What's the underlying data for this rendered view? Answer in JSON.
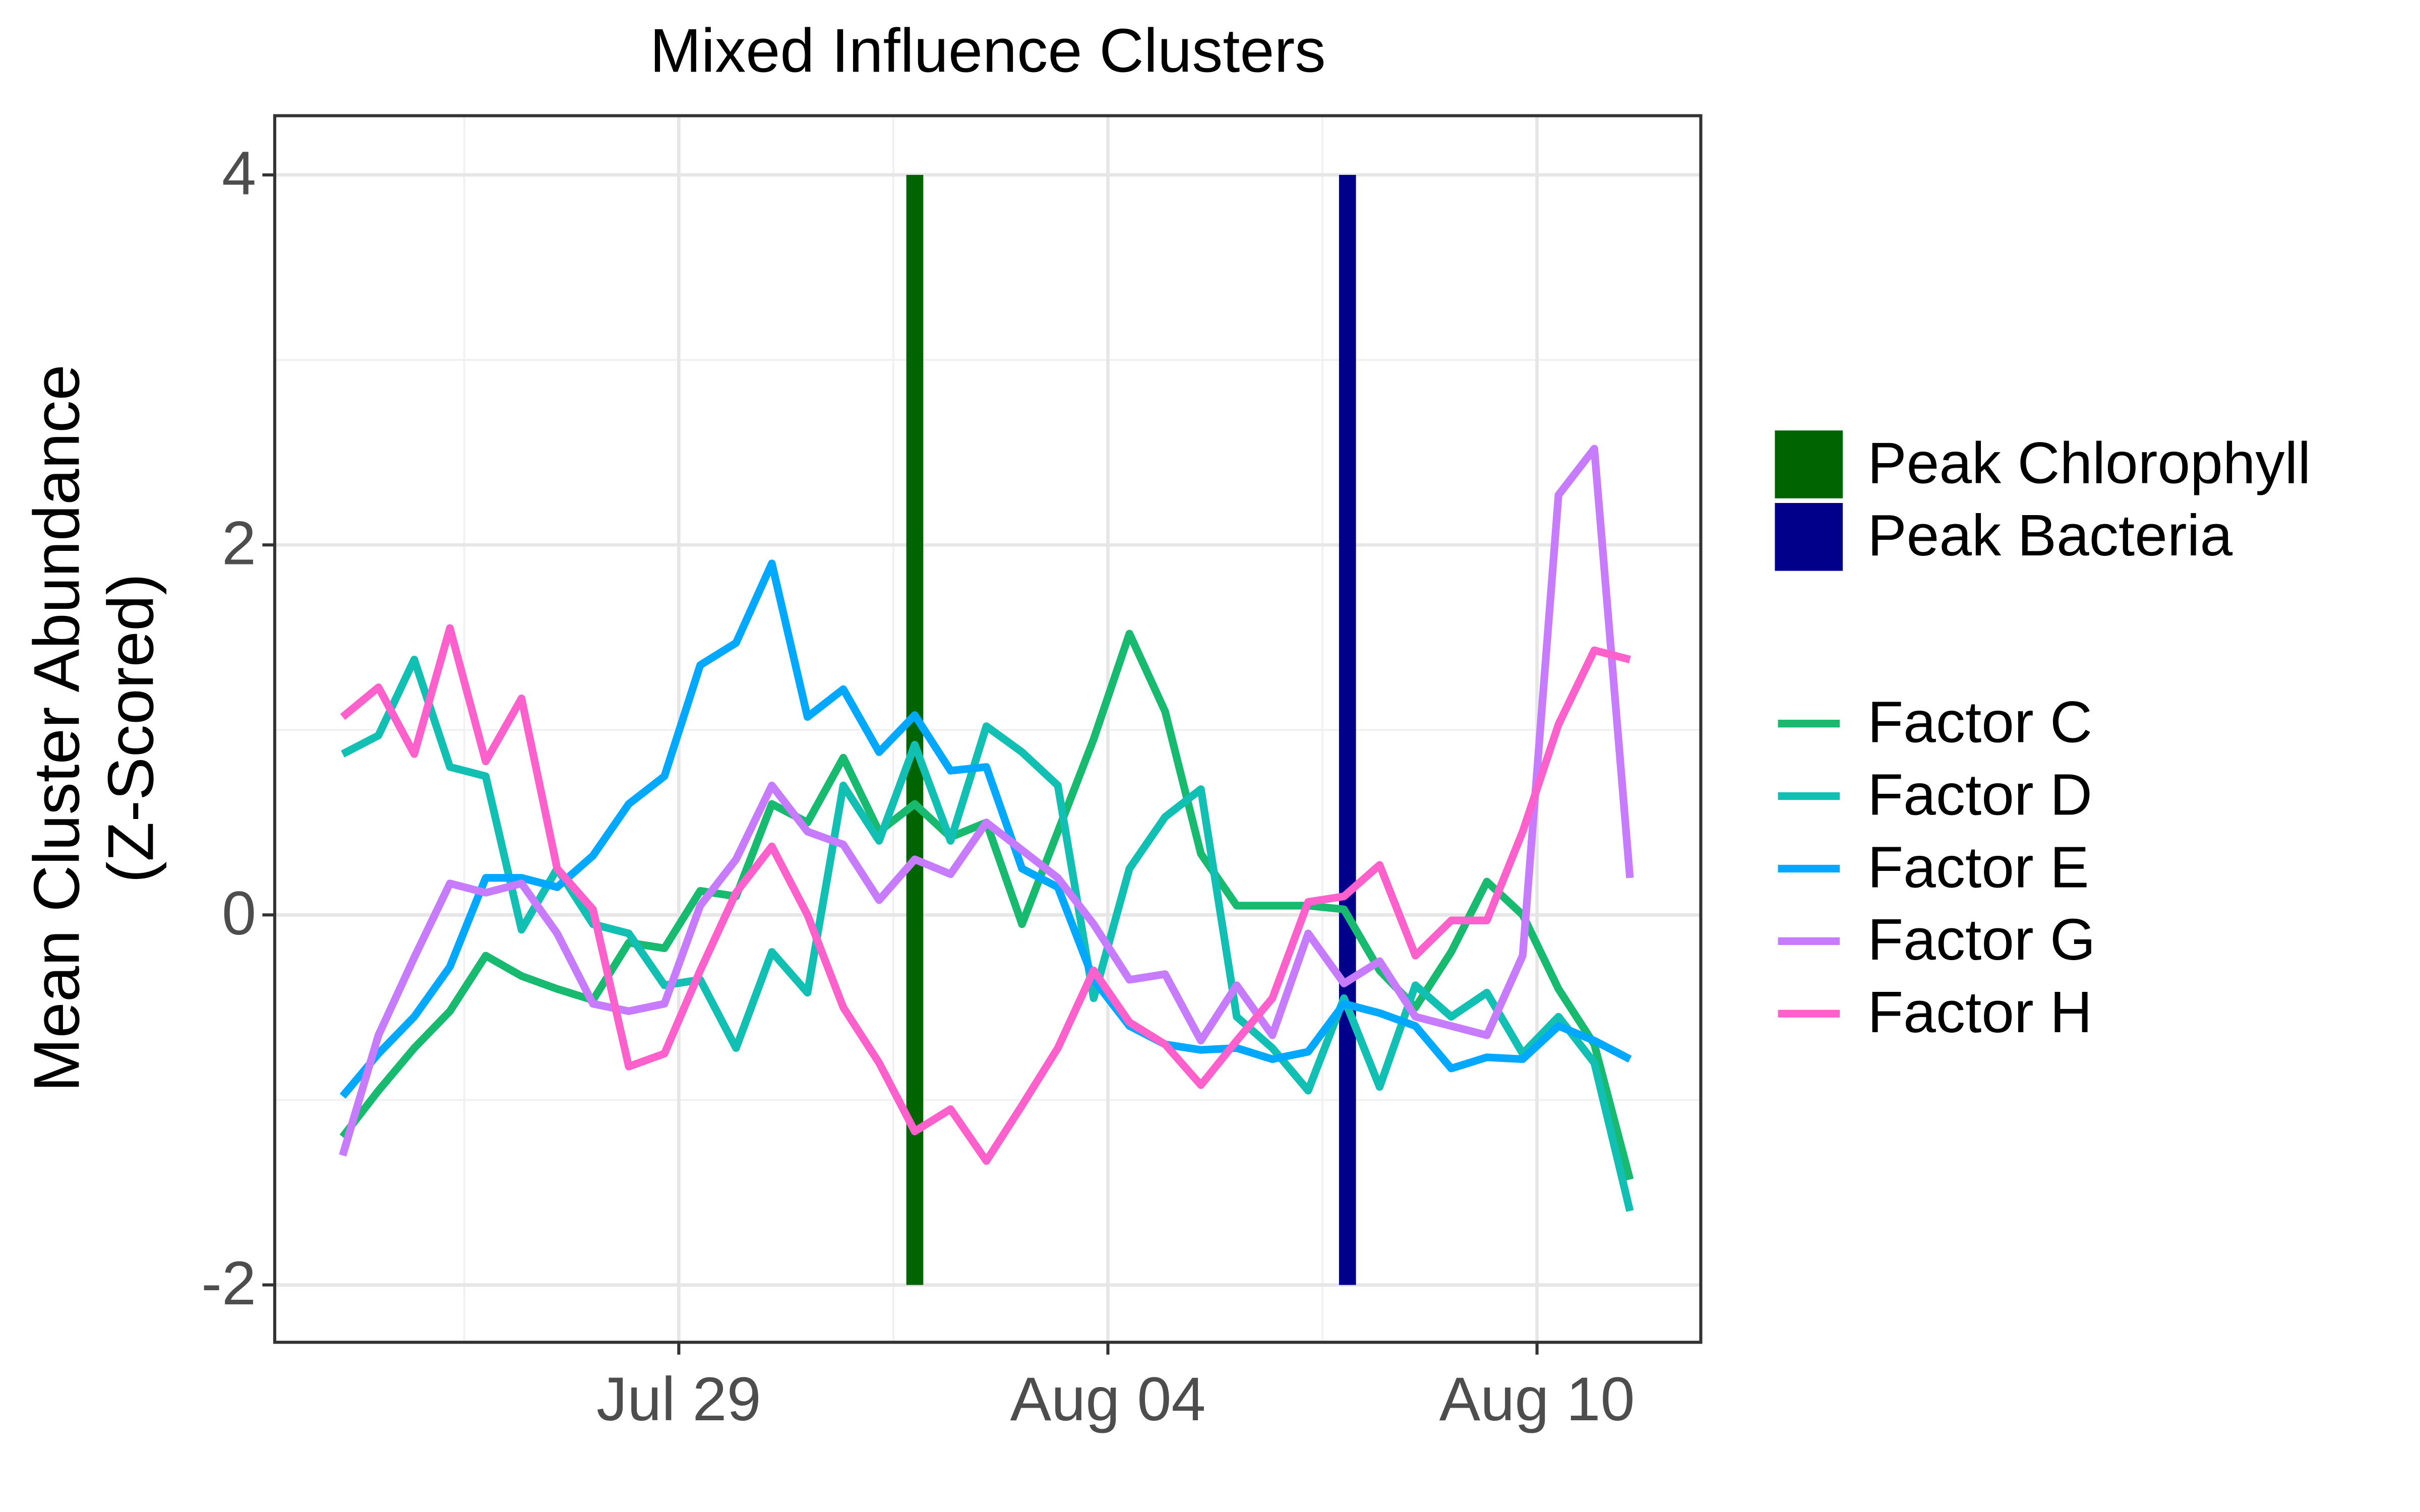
{
  "chart_data": {
    "type": "line",
    "title": "Mixed Influence Clusters",
    "y_label": [
      "Mean Cluster Abundance",
      "(Z-Scored)"
    ],
    "x": [
      -4.7,
      -4.2,
      -3.7,
      -3.2,
      -2.7,
      -2.2,
      -1.7,
      -1.2,
      -0.7,
      -0.2,
      0.3,
      0.8,
      1.3,
      1.8,
      2.3,
      2.8,
      3.3,
      3.8,
      4.3,
      4.8,
      5.3,
      5.8,
      6.3,
      6.8,
      7.3,
      7.8,
      8.3,
      8.8,
      9.3,
      9.8,
      10.3,
      10.8,
      11.3,
      11.8,
      12.3,
      12.8,
      13.3
    ],
    "xlim": [
      -5.65,
      14.29
    ],
    "xticks": [
      {
        "value": 0,
        "label": "Jul 29"
      },
      {
        "value": 6,
        "label": "Aug 04"
      },
      {
        "value": 12,
        "label": "Aug 10"
      }
    ],
    "ylim": [
      -2.31,
      4.32
    ],
    "yticks": [
      4,
      2,
      0,
      -2
    ],
    "grid": true,
    "minor_grid": true,
    "vlines": [
      {
        "name": "Peak Chlorophyll",
        "color": "#006400",
        "x": 3.3,
        "range": [
          -2,
          4
        ]
      },
      {
        "name": "Peak Bacteria",
        "color": "#00008B",
        "x": 9.35,
        "range": [
          -2,
          4
        ]
      }
    ],
    "series": [
      {
        "name": "Factor C",
        "color": "#17BA6E",
        "values": [
          -1.2,
          -0.95,
          -0.72,
          -0.52,
          -0.22,
          -0.33,
          -0.4,
          -0.46,
          -0.15,
          -0.18,
          0.13,
          0.1,
          0.6,
          0.5,
          0.85,
          0.45,
          0.6,
          0.42,
          0.5,
          -0.05,
          0.45,
          0.95,
          1.52,
          1.1,
          0.33,
          0.05,
          0.05,
          0.05,
          0.03,
          -0.3,
          -0.5,
          -0.2,
          0.18,
          0.0,
          -0.4,
          -0.7,
          -1.43
        ]
      },
      {
        "name": "Factor D",
        "color": "#12BFB3",
        "values": [
          0.87,
          0.97,
          1.38,
          0.8,
          0.75,
          -0.08,
          0.25,
          -0.05,
          -0.1,
          -0.38,
          -0.35,
          -0.72,
          -0.2,
          -0.42,
          0.7,
          0.4,
          0.92,
          0.4,
          1.02,
          0.88,
          0.7,
          -0.45,
          0.25,
          0.53,
          0.68,
          -0.55,
          -0.72,
          -0.95,
          -0.45,
          -0.93,
          -0.38,
          -0.55,
          -0.42,
          -0.75,
          -0.55,
          -0.8,
          -1.6
        ]
      },
      {
        "name": "Factor E",
        "color": "#00A9FF",
        "values": [
          -0.98,
          -0.75,
          -0.55,
          -0.28,
          0.2,
          0.2,
          0.15,
          0.32,
          0.6,
          0.75,
          1.35,
          1.47,
          1.9,
          1.07,
          1.22,
          0.88,
          1.08,
          0.78,
          0.8,
          0.25,
          0.15,
          -0.35,
          -0.6,
          -0.7,
          -0.73,
          -0.72,
          -0.78,
          -0.74,
          -0.48,
          -0.53,
          -0.6,
          -0.83,
          -0.77,
          -0.78,
          -0.6,
          -0.68,
          -0.78
        ]
      },
      {
        "name": "Factor G",
        "color": "#C77CFF",
        "values": [
          -1.3,
          -0.65,
          -0.23,
          0.17,
          0.12,
          0.17,
          -0.1,
          -0.48,
          -0.52,
          -0.48,
          0.05,
          0.3,
          0.7,
          0.45,
          0.38,
          0.08,
          0.3,
          0.22,
          0.5,
          0.35,
          0.2,
          -0.05,
          -0.35,
          -0.32,
          -0.68,
          -0.38,
          -0.65,
          -0.1,
          -0.37,
          -0.25,
          -0.55,
          -0.6,
          -0.65,
          -0.22,
          2.27,
          2.52,
          0.2
        ]
      },
      {
        "name": "Factor H",
        "color": "#FF61CC",
        "values": [
          1.07,
          1.23,
          0.87,
          1.55,
          0.83,
          1.17,
          0.25,
          0.03,
          -0.82,
          -0.75,
          -0.3,
          0.12,
          0.37,
          0.0,
          -0.5,
          -0.8,
          -1.17,
          -1.05,
          -1.33,
          -1.03,
          -0.72,
          -0.3,
          -0.58,
          -0.7,
          -0.92,
          -0.68,
          -0.45,
          0.07,
          0.1,
          0.27,
          -0.22,
          -0.03,
          -0.03,
          0.45,
          1.03,
          1.43,
          1.38
        ]
      }
    ]
  }
}
